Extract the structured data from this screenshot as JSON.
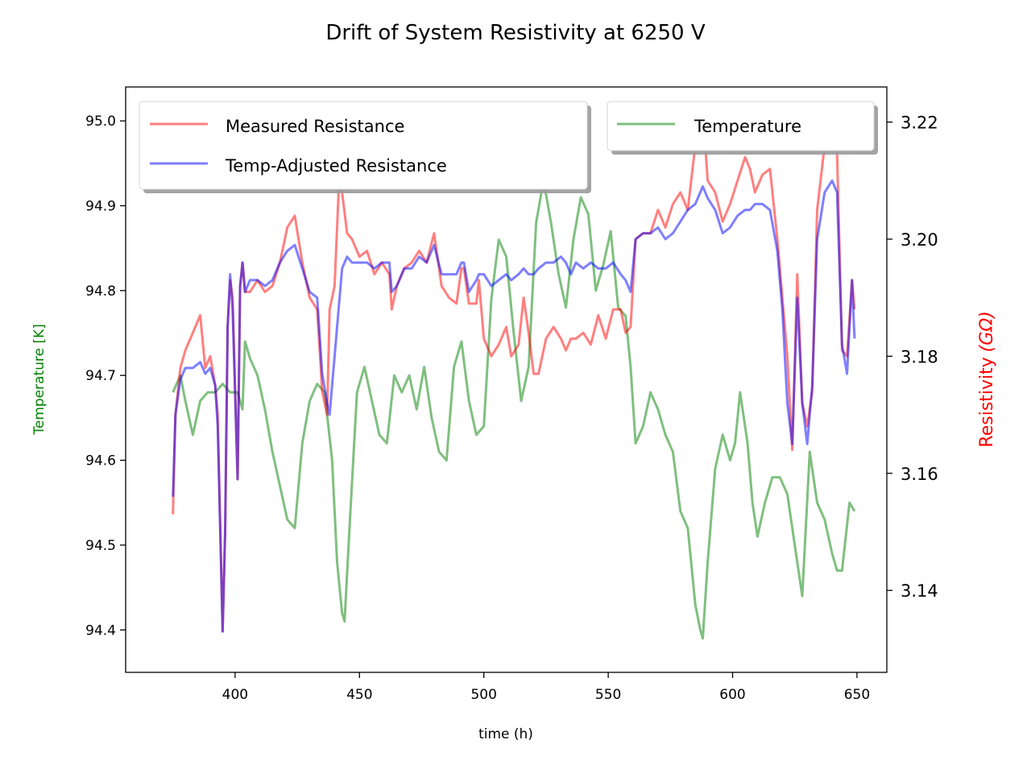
{
  "chart_data": {
    "type": "line",
    "title": "Drift of System Resistivity at 6250 V",
    "xlabel": "time (h)",
    "ylabel_left": "Temperature [K]",
    "ylabel_right": "Resistivity",
    "ylabel_right_unit": "(GΩ)",
    "xlim": [
      356,
      662
    ],
    "ylim_left": [
      94.35,
      95.04
    ],
    "ylim_right": [
      3.126,
      3.226
    ],
    "xticks": [
      400,
      450,
      500,
      550,
      600,
      650
    ],
    "yticks_left": [
      94.4,
      94.5,
      94.6,
      94.7,
      94.8,
      94.9,
      95.0
    ],
    "yticks_right": [
      3.14,
      3.16,
      3.18,
      3.2,
      3.22
    ],
    "colors": {
      "measured": "#ff0000",
      "adjusted": "#0000ff",
      "temperature": "#008000",
      "left_label": "#008000",
      "right_label": "#ff0000"
    },
    "legends": {
      "left": [
        "Measured Resistance",
        "Temp-Adjusted Resistance"
      ],
      "right": [
        "Temperature"
      ]
    },
    "series": [
      {
        "name": "Temperature",
        "axis": "left",
        "x": [
          375,
          378,
          380,
          383,
          386,
          389,
          392,
          395,
          398,
          401,
          403,
          404,
          406,
          409,
          412,
          415,
          418,
          421,
          424,
          427,
          430,
          433,
          436,
          439,
          441,
          443,
          444,
          446,
          449,
          452,
          455,
          458,
          461,
          464,
          467,
          470,
          473,
          476,
          479,
          482,
          485,
          488,
          491,
          494,
          497,
          500,
          503,
          506,
          509,
          512,
          515,
          518,
          521,
          524,
          527,
          530,
          533,
          536,
          539,
          542,
          545,
          548,
          551,
          554,
          557,
          559,
          561,
          564,
          567,
          570,
          573,
          576,
          579,
          582,
          585,
          587,
          588,
          590,
          593,
          596,
          599,
          601,
          603,
          606,
          608,
          610,
          613,
          616,
          619,
          622,
          625,
          628,
          631,
          634,
          637,
          640,
          642,
          644,
          647,
          649
        ],
        "y": [
          94.68,
          94.7,
          94.67,
          94.63,
          94.67,
          94.68,
          94.68,
          94.69,
          94.68,
          94.68,
          94.66,
          94.74,
          94.72,
          94.7,
          94.66,
          94.61,
          94.57,
          94.53,
          94.52,
          94.62,
          94.67,
          94.69,
          94.68,
          94.6,
          94.48,
          94.42,
          94.41,
          94.52,
          94.68,
          94.71,
          94.67,
          94.63,
          94.62,
          94.7,
          94.68,
          94.7,
          94.66,
          94.71,
          94.65,
          94.61,
          94.6,
          94.71,
          94.74,
          94.67,
          94.63,
          94.64,
          94.79,
          94.86,
          94.84,
          94.75,
          94.67,
          94.71,
          94.88,
          94.93,
          94.88,
          94.82,
          94.78,
          94.86,
          94.91,
          94.89,
          94.8,
          94.83,
          94.87,
          94.78,
          94.77,
          94.71,
          94.62,
          94.64,
          94.68,
          94.66,
          94.63,
          94.61,
          94.54,
          94.52,
          94.43,
          94.4,
          94.39,
          94.48,
          94.59,
          94.63,
          94.6,
          94.62,
          94.68,
          94.62,
          94.55,
          94.51,
          94.55,
          94.58,
          94.58,
          94.56,
          94.5,
          94.44,
          94.61,
          94.55,
          94.53,
          94.49,
          94.47,
          94.47,
          94.55,
          94.54
        ]
      },
      {
        "name": "Measured Resistance",
        "axis": "right",
        "x": [
          375,
          376,
          378,
          380,
          383,
          386,
          388,
          390,
          392,
          393,
          395,
          396,
          397,
          398,
          399,
          401,
          402,
          403,
          404,
          406,
          409,
          412,
          415,
          418,
          421,
          424,
          427,
          430,
          433,
          435,
          437,
          438,
          440,
          442,
          443,
          445,
          447,
          450,
          453,
          456,
          459,
          462,
          463,
          465,
          468,
          471,
          474,
          477,
          480,
          483,
          486,
          489,
          491,
          492,
          494,
          497,
          498,
          500,
          503,
          506,
          509,
          511,
          514,
          516,
          518,
          520,
          522,
          525,
          528,
          531,
          533,
          535,
          537,
          540,
          543,
          546,
          549,
          552,
          555,
          557,
          559,
          561,
          564,
          567,
          570,
          573,
          576,
          579,
          582,
          585,
          588,
          590,
          593,
          596,
          599,
          602,
          605,
          607,
          609,
          612,
          615,
          618,
          620,
          622,
          624,
          626,
          628,
          630,
          632,
          634,
          637,
          640,
          642,
          644,
          646,
          648,
          649
        ],
        "y": [
          3.153,
          3.17,
          3.178,
          3.181,
          3.184,
          3.187,
          3.178,
          3.18,
          3.175,
          3.17,
          3.133,
          3.15,
          3.185,
          3.193,
          3.19,
          3.159,
          3.192,
          3.196,
          3.191,
          3.191,
          3.193,
          3.191,
          3.192,
          3.196,
          3.202,
          3.204,
          3.196,
          3.19,
          3.188,
          3.174,
          3.17,
          3.188,
          3.192,
          3.212,
          3.208,
          3.201,
          3.2,
          3.197,
          3.198,
          3.194,
          3.196,
          3.194,
          3.188,
          3.192,
          3.195,
          3.196,
          3.198,
          3.196,
          3.201,
          3.192,
          3.19,
          3.189,
          3.195,
          3.195,
          3.189,
          3.189,
          3.193,
          3.183,
          3.18,
          3.182,
          3.185,
          3.18,
          3.182,
          3.19,
          3.184,
          3.177,
          3.177,
          3.183,
          3.185,
          3.183,
          3.181,
          3.183,
          3.183,
          3.184,
          3.182,
          3.187,
          3.183,
          3.188,
          3.188,
          3.184,
          3.185,
          3.2,
          3.201,
          3.201,
          3.205,
          3.202,
          3.206,
          3.208,
          3.205,
          3.216,
          3.222,
          3.21,
          3.208,
          3.203,
          3.206,
          3.21,
          3.214,
          3.212,
          3.208,
          3.211,
          3.212,
          3.2,
          3.19,
          3.18,
          3.164,
          3.194,
          3.172,
          3.168,
          3.174,
          3.205,
          3.216,
          3.22,
          3.215,
          3.181,
          3.18,
          3.193,
          3.188
        ]
      },
      {
        "name": "Temp-Adjusted Resistance",
        "axis": "right",
        "x": [
          375,
          376,
          378,
          380,
          383,
          386,
          388,
          390,
          392,
          393,
          395,
          396,
          397,
          398,
          399,
          401,
          402,
          403,
          404,
          406,
          409,
          412,
          415,
          418,
          421,
          424,
          427,
          430,
          433,
          435,
          437,
          438,
          440,
          442,
          443,
          445,
          447,
          450,
          453,
          456,
          459,
          462,
          463,
          465,
          468,
          471,
          474,
          477,
          480,
          483,
          486,
          489,
          491,
          492,
          494,
          497,
          498,
          500,
          503,
          506,
          509,
          511,
          514,
          516,
          518,
          520,
          522,
          525,
          528,
          531,
          533,
          535,
          537,
          540,
          543,
          546,
          549,
          552,
          555,
          557,
          559,
          561,
          564,
          567,
          570,
          573,
          576,
          579,
          582,
          585,
          588,
          590,
          593,
          596,
          599,
          602,
          605,
          607,
          609,
          612,
          615,
          618,
          620,
          622,
          624,
          626,
          628,
          630,
          632,
          634,
          637,
          640,
          642,
          644,
          646,
          648,
          649
        ],
        "y": [
          3.156,
          3.17,
          3.176,
          3.178,
          3.178,
          3.179,
          3.177,
          3.178,
          3.175,
          3.168,
          3.133,
          3.15,
          3.185,
          3.194,
          3.188,
          3.159,
          3.192,
          3.196,
          3.191,
          3.193,
          3.193,
          3.192,
          3.193,
          3.196,
          3.198,
          3.199,
          3.195,
          3.191,
          3.19,
          3.177,
          3.172,
          3.17,
          3.18,
          3.19,
          3.195,
          3.197,
          3.196,
          3.196,
          3.196,
          3.195,
          3.196,
          3.196,
          3.191,
          3.192,
          3.195,
          3.195,
          3.197,
          3.196,
          3.199,
          3.194,
          3.194,
          3.194,
          3.196,
          3.196,
          3.191,
          3.193,
          3.194,
          3.194,
          3.192,
          3.193,
          3.194,
          3.193,
          3.194,
          3.195,
          3.194,
          3.194,
          3.195,
          3.196,
          3.196,
          3.197,
          3.196,
          3.194,
          3.196,
          3.195,
          3.196,
          3.195,
          3.195,
          3.196,
          3.194,
          3.193,
          3.191,
          3.2,
          3.201,
          3.201,
          3.202,
          3.2,
          3.201,
          3.203,
          3.205,
          3.206,
          3.209,
          3.207,
          3.205,
          3.201,
          3.202,
          3.204,
          3.205,
          3.205,
          3.206,
          3.206,
          3.205,
          3.198,
          3.188,
          3.172,
          3.165,
          3.19,
          3.172,
          3.165,
          3.175,
          3.2,
          3.208,
          3.21,
          3.208,
          3.182,
          3.177,
          3.193,
          3.183
        ]
      }
    ]
  }
}
